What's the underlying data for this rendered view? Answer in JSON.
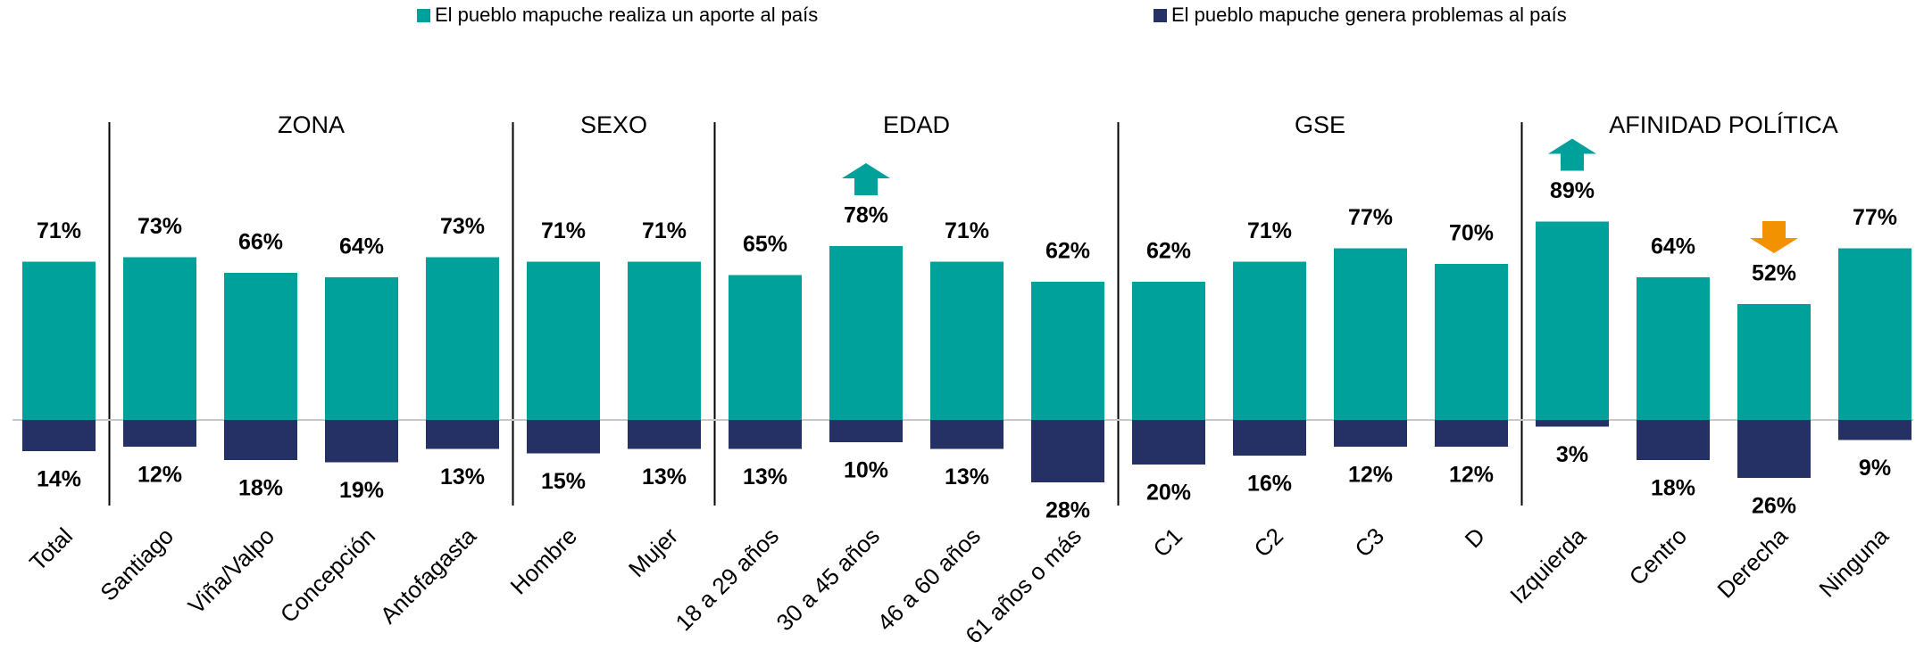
{
  "chart_data": {
    "type": "bar",
    "legend": [
      "El pueblo mapuche realiza un aporte al país",
      "El pueblo mapuche genera problemas al país"
    ],
    "categories": [
      "Total",
      "Santiago",
      "Viña/Valpo",
      "Concepción",
      "Antofagasta",
      "Hombre",
      "Mujer",
      "18 a 29 años",
      "30 a 45 años",
      "46 a 60 años",
      "61 años o más",
      "C1",
      "C2",
      "C3",
      "D",
      "Izquierda",
      "Centro",
      "Derecha",
      "Ninguna"
    ],
    "groups": [
      {
        "name": "ZONA",
        "start": 1,
        "end": 4
      },
      {
        "name": "SEXO",
        "start": 5,
        "end": 6
      },
      {
        "name": "EDAD",
        "start": 7,
        "end": 10
      },
      {
        "name": "GSE",
        "start": 11,
        "end": 14
      },
      {
        "name": "AFINIDAD POLÍTICA",
        "start": 15,
        "end": 18
      }
    ],
    "series": [
      {
        "name": "El pueblo mapuche realiza un aporte al país",
        "color": "#00a19a",
        "direction": "up",
        "values": [
          71,
          73,
          66,
          64,
          73,
          71,
          71,
          65,
          78,
          71,
          62,
          62,
          71,
          77,
          70,
          89,
          64,
          52,
          77
        ],
        "value_labels": [
          "71%",
          "73%",
          "66%",
          "64%",
          "73%",
          "71%",
          "71%",
          "65%",
          "78%",
          "71%",
          "62%",
          "62%",
          "71%",
          "77%",
          "70%",
          "89%",
          "64%",
          "52%",
          "77%"
        ]
      },
      {
        "name": "El pueblo mapuche genera problemas al país",
        "color": "#253165",
        "direction": "down",
        "values": [
          14,
          12,
          18,
          19,
          13,
          15,
          13,
          13,
          10,
          13,
          28,
          20,
          16,
          12,
          12,
          3,
          18,
          26,
          9
        ],
        "value_labels": [
          "14%",
          "12%",
          "18%",
          "19%",
          "13%",
          "15%",
          "13%",
          "13%",
          "10%",
          "13%",
          "28%",
          "20%",
          "16%",
          "12%",
          "12%",
          "3%",
          "18%",
          "26%",
          "9%"
        ]
      }
    ],
    "markers": [
      {
        "index": 8,
        "direction": "up",
        "color": "#00a19a"
      },
      {
        "index": 15,
        "direction": "up",
        "color": "#00a19a"
      },
      {
        "index": 17,
        "direction": "down",
        "color": "#f39200"
      }
    ]
  }
}
